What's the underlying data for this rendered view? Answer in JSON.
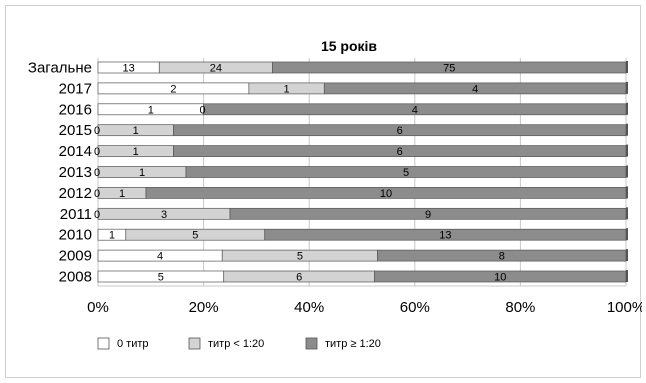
{
  "chart_data": {
    "type": "bar",
    "orientation": "horizontal",
    "stacked": "percent",
    "title": "15 років",
    "categories": [
      "Загальне",
      "2017",
      "2016",
      "2015",
      "2014",
      "2013",
      "2012",
      "2011",
      "2010",
      "2009",
      "2008"
    ],
    "series": [
      {
        "name": "0 титр",
        "color": "#ffffff",
        "values": [
          13,
          2,
          1,
          0,
          0,
          0,
          0,
          0,
          1,
          4,
          5
        ]
      },
      {
        "name": "титр < 1:20",
        "color": "#d3d3d3",
        "values": [
          24,
          1,
          0,
          1,
          1,
          1,
          1,
          3,
          5,
          5,
          6
        ]
      },
      {
        "name": "титр ≥ 1:20",
        "color": "#8c8c8c",
        "values": [
          75,
          4,
          4,
          6,
          6,
          5,
          10,
          9,
          13,
          8,
          10
        ]
      }
    ],
    "xticks": [
      "0%",
      "20%",
      "40%",
      "60%",
      "80%",
      "100%"
    ],
    "xlim": [
      0,
      100
    ],
    "grid": true,
    "legend_position": "bottom-left"
  }
}
